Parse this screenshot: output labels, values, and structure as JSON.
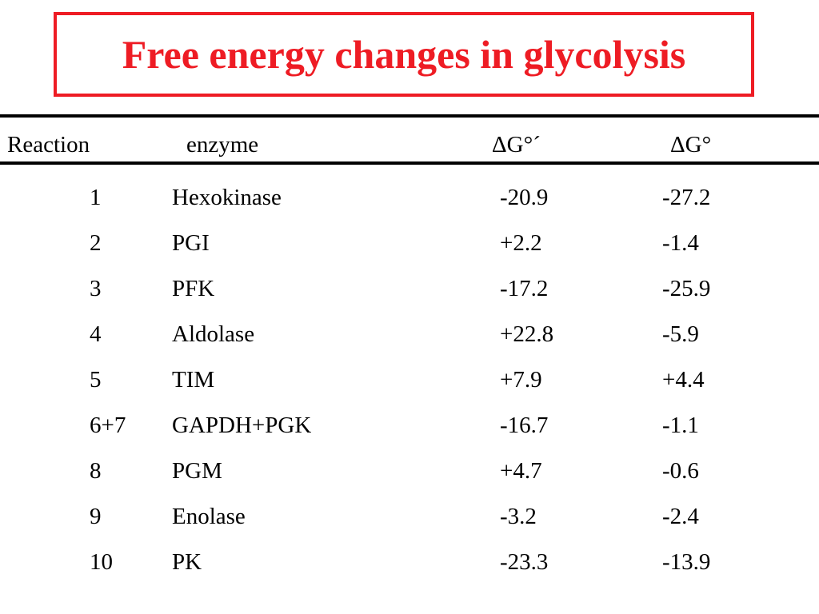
{
  "title": "Free energy changes in glycolysis",
  "colors": {
    "title": "#ee1c24",
    "text": "#000000",
    "rule": "#000000",
    "background": "#ffffff"
  },
  "table": {
    "headers": {
      "reaction": "Reaction",
      "enzyme": "enzyme",
      "dg_standard_prime": "ΔG°´",
      "dg": "ΔG°"
    },
    "rows": [
      {
        "reaction": "1",
        "enzyme": "Hexokinase",
        "dg_standard_prime": "-20.9",
        "dg": "-27.2"
      },
      {
        "reaction": "2",
        "enzyme": "PGI",
        "dg_standard_prime": "+2.2",
        "dg": "-1.4"
      },
      {
        "reaction": "3",
        "enzyme": "PFK",
        "dg_standard_prime": "-17.2",
        "dg": "-25.9"
      },
      {
        "reaction": "4",
        "enzyme": "Aldolase",
        "dg_standard_prime": "+22.8",
        "dg": "-5.9"
      },
      {
        "reaction": "5",
        "enzyme": "TIM",
        "dg_standard_prime": "+7.9",
        "dg": "+4.4"
      },
      {
        "reaction": "6+7",
        "enzyme": "GAPDH+PGK",
        "dg_standard_prime": "-16.7",
        "dg": "-1.1"
      },
      {
        "reaction": "8",
        "enzyme": "PGM",
        "dg_standard_prime": "+4.7",
        "dg": "-0.6"
      },
      {
        "reaction": "9",
        "enzyme": "Enolase",
        "dg_standard_prime": "-3.2",
        "dg": "-2.4"
      },
      {
        "reaction": "10",
        "enzyme": "PK",
        "dg_standard_prime": "-23.3",
        "dg": "-13.9"
      }
    ]
  }
}
